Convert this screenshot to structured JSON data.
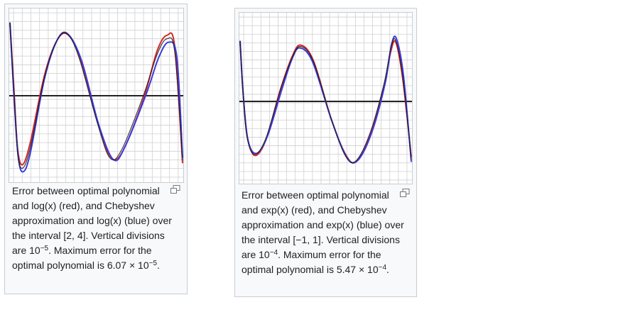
{
  "figures": [
    {
      "id": "log",
      "caption_parts": {
        "main": "Error between optimal polynomial and log(x) (red), and Chebyshev approximation and log(x) (blue) over the interval [2, 4]. Vertical divisions are 10",
        "exp1": "−5",
        "mid": ". Maximum error for the optimal polynomial is 6.07 × 10",
        "exp2": "−5",
        "end": "."
      },
      "colors": {
        "optimal": "#d62728",
        "chebyshev": "#3a3adf",
        "axis": "#222222",
        "grid": "#c8c8c8"
      }
    },
    {
      "id": "exp",
      "caption_parts": {
        "main": "Error between optimal polynomial and exp(x) (red), and Chebyshev approximation and exp(x) (blue) over the interval [−1, 1]. Vertical divisions are 10",
        "exp1": "−4",
        "mid": ". Maximum error for the optimal polynomial is 5.47 × 10",
        "exp2": "−4",
        "end": "."
      },
      "colors": {
        "optimal": "#d62728",
        "chebyshev": "#3a3adf",
        "axis": "#222222",
        "grid": "#c8c8c8"
      }
    }
  ],
  "icons": {
    "enlarge": "enlarge-icon"
  }
}
